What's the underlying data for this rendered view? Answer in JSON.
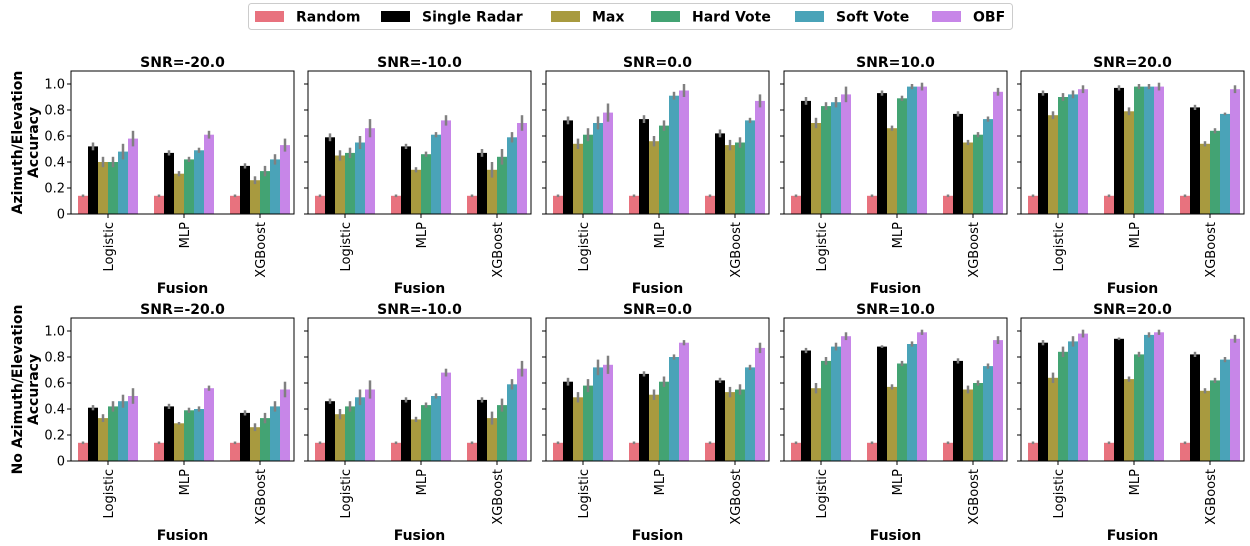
{
  "chart_data": {
    "type": "bar",
    "legend": {
      "position": "top-center",
      "entries": [
        "Random",
        "Single Radar",
        "Max",
        "Hard Vote",
        "Soft Vote",
        "OBF"
      ]
    },
    "colors": [
      "#e8727e",
      "#000000",
      "#a89a3f",
      "#43a373",
      "#4aa3b8",
      "#c786e8"
    ],
    "error_bar_color": "#808080",
    "xlabel": "Fusion",
    "categories": [
      "Logistic",
      "MLP",
      "XGBoost"
    ],
    "ylim": [
      0,
      1.1
    ],
    "yticks": [
      "0",
      "0.2",
      "0.4",
      "0.6",
      "0.8",
      "1.0"
    ],
    "rows": [
      {
        "ylabel": [
          "Azimuth/Elevation",
          "Accuracy"
        ],
        "panels": [
          {
            "title": "SNR=-20.0",
            "series": [
              {
                "name": "Random",
                "values": [
                  0.14,
                  0.14,
                  0.14
                ],
                "err": [
                  0.01,
                  0.01,
                  0.01
                ]
              },
              {
                "name": "Single Radar",
                "values": [
                  0.52,
                  0.47,
                  0.37
                ],
                "err": [
                  0.03,
                  0.02,
                  0.02
                ]
              },
              {
                "name": "Max",
                "values": [
                  0.4,
                  0.31,
                  0.26
                ],
                "err": [
                  0.04,
                  0.02,
                  0.03
                ]
              },
              {
                "name": "Hard Vote",
                "values": [
                  0.4,
                  0.42,
                  0.33
                ],
                "err": [
                  0.04,
                  0.02,
                  0.04
                ]
              },
              {
                "name": "Soft Vote",
                "values": [
                  0.48,
                  0.49,
                  0.42
                ],
                "err": [
                  0.06,
                  0.02,
                  0.04
                ]
              },
              {
                "name": "OBF",
                "values": [
                  0.58,
                  0.61,
                  0.53
                ],
                "err": [
                  0.06,
                  0.03,
                  0.05
                ]
              }
            ]
          },
          {
            "title": "SNR=-10.0",
            "series": [
              {
                "name": "Random",
                "values": [
                  0.14,
                  0.14,
                  0.14
                ],
                "err": [
                  0.01,
                  0.01,
                  0.01
                ]
              },
              {
                "name": "Single Radar",
                "values": [
                  0.59,
                  0.52,
                  0.47
                ],
                "err": [
                  0.03,
                  0.02,
                  0.03
                ]
              },
              {
                "name": "Max",
                "values": [
                  0.45,
                  0.34,
                  0.34
                ],
                "err": [
                  0.04,
                  0.02,
                  0.06
                ]
              },
              {
                "name": "Hard Vote",
                "values": [
                  0.47,
                  0.46,
                  0.44
                ],
                "err": [
                  0.04,
                  0.02,
                  0.06
                ]
              },
              {
                "name": "Soft Vote",
                "values": [
                  0.55,
                  0.61,
                  0.59
                ],
                "err": [
                  0.05,
                  0.02,
                  0.04
                ]
              },
              {
                "name": "OBF",
                "values": [
                  0.66,
                  0.72,
                  0.7
                ],
                "err": [
                  0.07,
                  0.04,
                  0.06
                ]
              }
            ]
          },
          {
            "title": "SNR=0.0",
            "series": [
              {
                "name": "Random",
                "values": [
                  0.14,
                  0.14,
                  0.14
                ],
                "err": [
                  0.01,
                  0.01,
                  0.01
                ]
              },
              {
                "name": "Single Radar",
                "values": [
                  0.72,
                  0.73,
                  0.62
                ],
                "err": [
                  0.03,
                  0.03,
                  0.03
                ]
              },
              {
                "name": "Max",
                "values": [
                  0.54,
                  0.56,
                  0.53
                ],
                "err": [
                  0.04,
                  0.04,
                  0.04
                ]
              },
              {
                "name": "Hard Vote",
                "values": [
                  0.61,
                  0.68,
                  0.55
                ],
                "err": [
                  0.05,
                  0.04,
                  0.04
                ]
              },
              {
                "name": "Soft Vote",
                "values": [
                  0.7,
                  0.91,
                  0.72
                ],
                "err": [
                  0.05,
                  0.03,
                  0.02
                ]
              },
              {
                "name": "OBF",
                "values": [
                  0.78,
                  0.95,
                  0.87
                ],
                "err": [
                  0.07,
                  0.05,
                  0.05
                ]
              }
            ]
          },
          {
            "title": "SNR=10.0",
            "series": [
              {
                "name": "Random",
                "values": [
                  0.14,
                  0.14,
                  0.14
                ],
                "err": [
                  0.01,
                  0.01,
                  0.01
                ]
              },
              {
                "name": "Single Radar",
                "values": [
                  0.87,
                  0.93,
                  0.77
                ],
                "err": [
                  0.03,
                  0.02,
                  0.02
                ]
              },
              {
                "name": "Max",
                "values": [
                  0.7,
                  0.66,
                  0.55
                ],
                "err": [
                  0.04,
                  0.02,
                  0.02
                ]
              },
              {
                "name": "Hard Vote",
                "values": [
                  0.83,
                  0.89,
                  0.61
                ],
                "err": [
                  0.03,
                  0.02,
                  0.02
                ]
              },
              {
                "name": "Soft Vote",
                "values": [
                  0.86,
                  0.98,
                  0.73
                ],
                "err": [
                  0.04,
                  0.02,
                  0.02
                ]
              },
              {
                "name": "OBF",
                "values": [
                  0.92,
                  0.98,
                  0.94
                ],
                "err": [
                  0.06,
                  0.03,
                  0.03
                ]
              }
            ]
          },
          {
            "title": "SNR=20.0",
            "series": [
              {
                "name": "Random",
                "values": [
                  0.14,
                  0.14,
                  0.14
                ],
                "err": [
                  0.01,
                  0.01,
                  0.01
                ]
              },
              {
                "name": "Single Radar",
                "values": [
                  0.93,
                  0.97,
                  0.82
                ],
                "err": [
                  0.02,
                  0.02,
                  0.02
                ]
              },
              {
                "name": "Max",
                "values": [
                  0.76,
                  0.79,
                  0.54
                ],
                "err": [
                  0.03,
                  0.03,
                  0.02
                ]
              },
              {
                "name": "Hard Vote",
                "values": [
                  0.9,
                  0.98,
                  0.64
                ],
                "err": [
                  0.03,
                  0.02,
                  0.02
                ]
              },
              {
                "name": "Soft Vote",
                "values": [
                  0.92,
                  0.98,
                  0.77
                ],
                "err": [
                  0.03,
                  0.02,
                  0.01
                ]
              },
              {
                "name": "OBF",
                "values": [
                  0.96,
                  0.98,
                  0.96
                ],
                "err": [
                  0.03,
                  0.03,
                  0.03
                ]
              }
            ]
          }
        ]
      },
      {
        "ylabel": [
          "No Azimuth/Elevation",
          "Accuracy"
        ],
        "panels": [
          {
            "title": "SNR=-20.0",
            "series": [
              {
                "name": "Random",
                "values": [
                  0.14,
                  0.14,
                  0.14
                ],
                "err": [
                  0.01,
                  0.01,
                  0.01
                ]
              },
              {
                "name": "Single Radar",
                "values": [
                  0.41,
                  0.42,
                  0.37
                ],
                "err": [
                  0.02,
                  0.02,
                  0.02
                ]
              },
              {
                "name": "Max",
                "values": [
                  0.33,
                  0.29,
                  0.26
                ],
                "err": [
                  0.03,
                  0.01,
                  0.03
                ]
              },
              {
                "name": "Hard Vote",
                "values": [
                  0.42,
                  0.39,
                  0.33
                ],
                "err": [
                  0.04,
                  0.02,
                  0.04
                ]
              },
              {
                "name": "Soft Vote",
                "values": [
                  0.46,
                  0.4,
                  0.42
                ],
                "err": [
                  0.05,
                  0.02,
                  0.04
                ]
              },
              {
                "name": "OBF",
                "values": [
                  0.5,
                  0.56,
                  0.55
                ],
                "err": [
                  0.06,
                  0.02,
                  0.06
                ]
              }
            ]
          },
          {
            "title": "SNR=-10.0",
            "series": [
              {
                "name": "Random",
                "values": [
                  0.14,
                  0.14,
                  0.14
                ],
                "err": [
                  0.01,
                  0.01,
                  0.01
                ]
              },
              {
                "name": "Single Radar",
                "values": [
                  0.46,
                  0.47,
                  0.47
                ],
                "err": [
                  0.02,
                  0.02,
                  0.02
                ]
              },
              {
                "name": "Max",
                "values": [
                  0.36,
                  0.32,
                  0.33
                ],
                "err": [
                  0.04,
                  0.02,
                  0.05
                ]
              },
              {
                "name": "Hard Vote",
                "values": [
                  0.42,
                  0.43,
                  0.43
                ],
                "err": [
                  0.04,
                  0.02,
                  0.05
                ]
              },
              {
                "name": "Soft Vote",
                "values": [
                  0.49,
                  0.5,
                  0.59
                ],
                "err": [
                  0.06,
                  0.02,
                  0.04
                ]
              },
              {
                "name": "OBF",
                "values": [
                  0.55,
                  0.68,
                  0.71
                ],
                "err": [
                  0.07,
                  0.03,
                  0.06
                ]
              }
            ]
          },
          {
            "title": "SNR=0.0",
            "series": [
              {
                "name": "Random",
                "values": [
                  0.14,
                  0.14,
                  0.14
                ],
                "err": [
                  0.01,
                  0.01,
                  0.01
                ]
              },
              {
                "name": "Single Radar",
                "values": [
                  0.61,
                  0.67,
                  0.62
                ],
                "err": [
                  0.03,
                  0.02,
                  0.02
                ]
              },
              {
                "name": "Max",
                "values": [
                  0.49,
                  0.51,
                  0.53
                ],
                "err": [
                  0.04,
                  0.04,
                  0.04
                ]
              },
              {
                "name": "Hard Vote",
                "values": [
                  0.58,
                  0.61,
                  0.55
                ],
                "err": [
                  0.05,
                  0.04,
                  0.04
                ]
              },
              {
                "name": "Soft Vote",
                "values": [
                  0.72,
                  0.8,
                  0.72
                ],
                "err": [
                  0.06,
                  0.02,
                  0.02
                ]
              },
              {
                "name": "OBF",
                "values": [
                  0.74,
                  0.91,
                  0.87
                ],
                "err": [
                  0.07,
                  0.02,
                  0.04
                ]
              }
            ]
          },
          {
            "title": "SNR=10.0",
            "series": [
              {
                "name": "Random",
                "values": [
                  0.14,
                  0.14,
                  0.14
                ],
                "err": [
                  0.01,
                  0.01,
                  0.01
                ]
              },
              {
                "name": "Single Radar",
                "values": [
                  0.85,
                  0.88,
                  0.77
                ],
                "err": [
                  0.02,
                  0.01,
                  0.02
                ]
              },
              {
                "name": "Max",
                "values": [
                  0.56,
                  0.57,
                  0.55
                ],
                "err": [
                  0.04,
                  0.02,
                  0.03
                ]
              },
              {
                "name": "Hard Vote",
                "values": [
                  0.77,
                  0.75,
                  0.6
                ],
                "err": [
                  0.03,
                  0.02,
                  0.02
                ]
              },
              {
                "name": "Soft Vote",
                "values": [
                  0.88,
                  0.9,
                  0.73
                ],
                "err": [
                  0.03,
                  0.02,
                  0.02
                ]
              },
              {
                "name": "OBF",
                "values": [
                  0.96,
                  0.99,
                  0.93
                ],
                "err": [
                  0.03,
                  0.02,
                  0.03
                ]
              }
            ]
          },
          {
            "title": "SNR=20.0",
            "series": [
              {
                "name": "Random",
                "values": [
                  0.14,
                  0.14,
                  0.14
                ],
                "err": [
                  0.01,
                  0.01,
                  0.01
                ]
              },
              {
                "name": "Single Radar",
                "values": [
                  0.91,
                  0.94,
                  0.82
                ],
                "err": [
                  0.02,
                  0.01,
                  0.02
                ]
              },
              {
                "name": "Max",
                "values": [
                  0.64,
                  0.63,
                  0.54
                ],
                "err": [
                  0.04,
                  0.02,
                  0.02
                ]
              },
              {
                "name": "Hard Vote",
                "values": [
                  0.84,
                  0.82,
                  0.62
                ],
                "err": [
                  0.04,
                  0.02,
                  0.02
                ]
              },
              {
                "name": "Soft Vote",
                "values": [
                  0.92,
                  0.97,
                  0.78
                ],
                "err": [
                  0.04,
                  0.02,
                  0.02
                ]
              },
              {
                "name": "OBF",
                "values": [
                  0.98,
                  0.99,
                  0.94
                ],
                "err": [
                  0.03,
                  0.02,
                  0.03
                ]
              }
            ]
          }
        ]
      }
    ]
  }
}
